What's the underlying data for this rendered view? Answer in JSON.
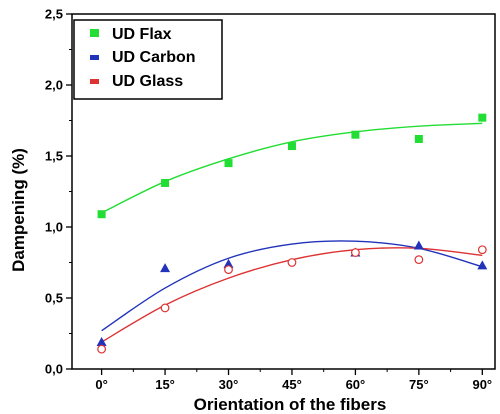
{
  "chart_data": {
    "type": "scatter",
    "title": "",
    "xlabel": "Orientation of the fibers",
    "ylabel": "Dampening (%)",
    "categories": [
      "0°",
      "15°",
      "30°",
      "45°",
      "60°",
      "75°",
      "90°"
    ],
    "x": [
      0,
      15,
      30,
      45,
      60,
      75,
      90
    ],
    "xlim": [
      -7,
      93
    ],
    "ylim": [
      0,
      2.5
    ],
    "yticks": [
      0.0,
      0.5,
      1.0,
      1.5,
      2.0,
      2.5
    ],
    "ytick_labels": [
      "0,0",
      "0,5",
      "1,0",
      "1,5",
      "2,0",
      "2,5"
    ],
    "grid": false,
    "legend_position": "top-left",
    "series": [
      {
        "name": "UD Flax",
        "color": "#22dd33",
        "marker": "square",
        "values": [
          1.09,
          1.31,
          1.45,
          1.57,
          1.65,
          1.62,
          1.77
        ],
        "fit": [
          1.1,
          1.32,
          1.48,
          1.6,
          1.67,
          1.71,
          1.73
        ]
      },
      {
        "name": "UD Carbon",
        "color": "#2233bb",
        "marker": "triangle",
        "values": [
          0.19,
          0.71,
          0.74,
          null,
          0.82,
          0.87,
          0.73
        ],
        "fit": [
          0.27,
          0.57,
          0.78,
          0.88,
          0.9,
          0.85,
          0.72
        ]
      },
      {
        "name": "UD Glass",
        "color": "#dd3333",
        "marker": "open-circle",
        "values": [
          0.14,
          0.43,
          0.7,
          0.75,
          0.82,
          0.77,
          0.84
        ],
        "fit": [
          0.19,
          0.45,
          0.64,
          0.77,
          0.84,
          0.85,
          0.8
        ]
      }
    ]
  }
}
